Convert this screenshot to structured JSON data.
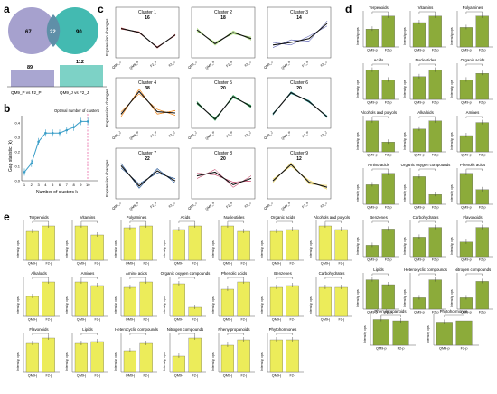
{
  "panel_labels": {
    "a": "a",
    "b": "b",
    "c": "c",
    "d": "d",
    "e": "e"
  },
  "colors": {
    "venn_left": "#9c97c9",
    "venn_right": "#2fb3a8",
    "bar_a": "#a9a6d1",
    "bar_b": "#7dd2c6",
    "bar_d": "#8cab3a",
    "bar_e": "#ecec5a",
    "gap_line": "#3a9ec8",
    "redline": "#e6559a"
  },
  "venn": {
    "left_only": "67",
    "shared": "22",
    "right_only": "90"
  },
  "deg_bars": {
    "bar1": {
      "label": "QM9_P vs F2_P",
      "value": "89"
    },
    "bar2": {
      "label": "QM9_J vs F2_J",
      "value": "112"
    }
  },
  "gap_plot": {
    "ylabel": "Gap statistic (k)",
    "xlabel": "Number of clusters k",
    "annotation": "Optimal number of clusters",
    "xticks": [
      "1",
      "2",
      "3",
      "4",
      "5",
      "6",
      "7",
      "8",
      "9",
      "10"
    ],
    "yticks": [
      "0.0",
      "0.1",
      "0.2",
      "0.3",
      "0.4"
    ]
  },
  "clusters": [
    {
      "title": "Cluster 1",
      "n": "16",
      "color": "#e0555a"
    },
    {
      "title": "Cluster 2",
      "n": "18",
      "color": "#a8d97a"
    },
    {
      "title": "Cluster 3",
      "n": "14",
      "color": "#7a7fc0"
    },
    {
      "title": "Cluster 4",
      "n": "38",
      "color": "#ef8a22"
    },
    {
      "title": "Cluster 5",
      "n": "20",
      "color": "#2ea85a"
    },
    {
      "title": "Cluster 6",
      "n": "20",
      "color": "#1f9a9a"
    },
    {
      "title": "Cluster 7",
      "n": "22",
      "color": "#2f5f9a"
    },
    {
      "title": "Cluster 8",
      "n": "20",
      "color": "#c95a7a"
    },
    {
      "title": "Cluster 9",
      "n": "12",
      "color": "#ecd56a"
    }
  ],
  "cluster_axes": {
    "ylabel": "Expression changes",
    "xticks": [
      "QM9_J",
      "QM9_P",
      "F2_P",
      "F2_J"
    ]
  },
  "panel_d": {
    "ylabel": "Intensity, cps",
    "xlabels": [
      "QM9-p",
      "F2-p"
    ],
    "items": [
      "Terpenoids",
      "Vitamins",
      "Polyamines",
      "Acids",
      "Nucleotides",
      "Organic acids",
      "Alcohols and polyols",
      "Alkaloids",
      "Amines",
      "Amino acids",
      "Organic oxygen compounds",
      "Phenolic acids",
      "Benzenes",
      "Carbohydrates",
      "Flavonoids",
      "Lipids",
      "Heterocyclic compounds",
      "Nitrogen compounds",
      "Phenylpropanoids",
      "Phytohormones"
    ]
  },
  "panel_e": {
    "ylabel": "Intensity, cps",
    "xlabels": [
      "QM9-j",
      "F2-j"
    ],
    "items": [
      "Terpenoids",
      "Vitamins",
      "Polyamines",
      "Acids",
      "Nucleotides",
      "Organic acids",
      "Alcohols and polyols",
      "Alkaloids",
      "Amines",
      "Amino acids",
      "Organic oxygen compounds",
      "Phenolic acids",
      "Benzenes",
      "Carbohydrates",
      "Flavonoids",
      "Lipids",
      "Heterocyclic compounds",
      "Nitrogen compounds",
      "Phenylpropanoids",
      "Phytohormones"
    ]
  }
}
